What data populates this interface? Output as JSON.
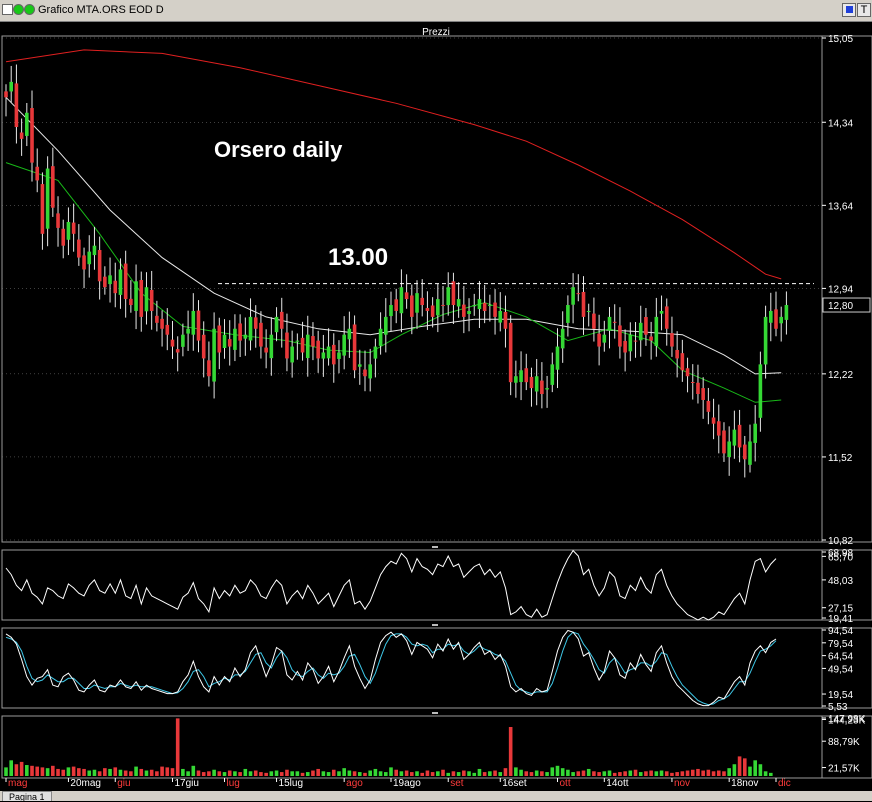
{
  "window": {
    "title": "Grafico MTA.ORS EOD D",
    "t_button": "T"
  },
  "tabs": [
    "Pagina 1"
  ],
  "panel_title": "Prezzi",
  "annotations": {
    "main_title": "Orsero daily",
    "level_label": "13.00",
    "level_value": 12.98
  },
  "price_axis": {
    "ticks": [
      "15,05",
      "14,34",
      "13,64",
      "12,94",
      "12,22",
      "11,52",
      "10,82"
    ],
    "last_price": "12,80"
  },
  "osc1_axis": {
    "ticks": [
      "68,98",
      "48,03",
      "27,15"
    ],
    "extra": [
      "65,70",
      "19,41"
    ]
  },
  "osc2_axis": {
    "ticks": [
      "94,54",
      "64,54",
      "49,54",
      "19,54"
    ],
    "extra": [
      "79,54",
      "5,53"
    ]
  },
  "volume_axis": {
    "ticks": [
      "147,98K",
      "88,79K",
      "21,57K"
    ],
    "extra": [
      "144,23K"
    ]
  },
  "colors": {
    "up": "#35d835",
    "down": "#e8383a",
    "ma_long": "#e02020",
    "ma_mid": "#e8e8e8",
    "ma_short": "#18b818",
    "osc_line": "#ffffff",
    "stoch_k": "#ffffff",
    "stoch_d": "#3ec8e8",
    "grid": "#808080",
    "text": "#ffffff",
    "axis_bg": "#000000",
    "month_label": "#ff3b3b"
  },
  "chart_data": {
    "type": "candlestick",
    "title": "Orsero daily",
    "x_labels": [
      {
        "label": "mag",
        "kind": "month",
        "day": 0
      },
      {
        "label": "20mag",
        "kind": "week",
        "day": 12
      },
      {
        "label": "giu",
        "kind": "month",
        "day": 21
      },
      {
        "label": "17giu",
        "kind": "week",
        "day": 32
      },
      {
        "label": "lug",
        "kind": "month",
        "day": 42
      },
      {
        "label": "15lug",
        "kind": "week",
        "day": 52
      },
      {
        "label": "ago",
        "kind": "month",
        "day": 65
      },
      {
        "label": "19ago",
        "kind": "week",
        "day": 74
      },
      {
        "label": "set",
        "kind": "month",
        "day": 85
      },
      {
        "label": "16set",
        "kind": "week",
        "day": 95
      },
      {
        "label": "ott",
        "kind": "month",
        "day": 106
      },
      {
        "label": "14ott",
        "kind": "week",
        "day": 115
      },
      {
        "label": "nov",
        "kind": "month",
        "day": 128
      },
      {
        "label": "18nov",
        "kind": "week",
        "day": 139
      },
      {
        "label": "dic",
        "kind": "month",
        "day": 148
      }
    ],
    "price_ylim": [
      10.82,
      15.05
    ],
    "osc1_ylim": [
      19.41,
      68.98
    ],
    "osc2_ylim": [
      5.53,
      94.54
    ],
    "volume_ylim": [
      0,
      147.98
    ],
    "close_series": [
      14.55,
      14.68,
      14.3,
      14.2,
      14.42,
      14.0,
      13.85,
      13.4,
      13.95,
      13.62,
      13.45,
      13.3,
      13.5,
      13.4,
      13.2,
      13.1,
      13.25,
      13.3,
      13.0,
      12.95,
      13.05,
      12.9,
      13.1,
      12.85,
      12.8,
      13.0,
      12.7,
      12.95,
      12.75,
      12.65,
      12.6,
      12.55,
      12.45,
      12.4,
      12.55,
      12.6,
      12.75,
      12.5,
      12.35,
      12.2,
      12.6,
      12.4,
      12.55,
      12.45,
      12.6,
      12.5,
      12.55,
      12.7,
      12.6,
      12.45,
      12.4,
      12.55,
      12.7,
      12.6,
      12.35,
      12.45,
      12.5,
      12.4,
      12.55,
      12.45,
      12.35,
      12.4,
      12.45,
      12.3,
      12.4,
      12.55,
      12.6,
      12.25,
      12.3,
      12.2,
      12.3,
      12.45,
      12.6,
      12.7,
      12.8,
      12.75,
      12.95,
      12.85,
      12.7,
      12.9,
      12.8,
      12.75,
      12.7,
      12.85,
      12.8,
      12.95,
      12.8,
      12.85,
      12.7,
      12.75,
      12.8,
      12.85,
      12.75,
      12.8,
      12.7,
      12.75,
      12.6,
      12.15,
      12.2,
      12.25,
      12.15,
      12.1,
      12.2,
      12.05,
      12.1,
      12.3,
      12.45,
      12.6,
      12.8,
      12.95,
      12.9,
      12.7,
      12.75,
      12.6,
      12.45,
      12.55,
      12.7,
      12.65,
      12.45,
      12.4,
      12.55,
      12.5,
      12.65,
      12.55,
      12.5,
      12.7,
      12.75,
      12.6,
      12.45,
      12.35,
      12.25,
      12.2,
      12.15,
      12.05,
      12.0,
      11.9,
      11.8,
      11.7,
      11.55,
      11.65,
      11.75,
      11.6,
      11.5,
      11.65,
      11.8,
      12.3,
      12.7,
      12.75,
      12.6,
      12.7,
      12.8
    ],
    "series": [
      {
        "name": "ma_long",
        "points": [
          [
            0,
            14.85
          ],
          [
            15,
            14.95
          ],
          [
            30,
            14.92
          ],
          [
            45,
            14.8
          ],
          [
            60,
            14.65
          ],
          [
            75,
            14.5
          ],
          [
            90,
            14.32
          ],
          [
            100,
            14.18
          ],
          [
            110,
            13.98
          ],
          [
            120,
            13.76
          ],
          [
            130,
            13.52
          ],
          [
            140,
            13.24
          ],
          [
            146,
            13.06
          ],
          [
            149,
            13.02
          ]
        ]
      },
      {
        "name": "ma_mid",
        "points": [
          [
            0,
            14.55
          ],
          [
            10,
            14.1
          ],
          [
            20,
            13.6
          ],
          [
            30,
            13.2
          ],
          [
            40,
            12.9
          ],
          [
            50,
            12.7
          ],
          [
            60,
            12.6
          ],
          [
            70,
            12.55
          ],
          [
            80,
            12.62
          ],
          [
            90,
            12.68
          ],
          [
            100,
            12.68
          ],
          [
            110,
            12.6
          ],
          [
            120,
            12.58
          ],
          [
            130,
            12.55
          ],
          [
            138,
            12.38
          ],
          [
            144,
            12.22
          ],
          [
            149,
            12.23
          ]
        ]
      },
      {
        "name": "ma_short",
        "points": [
          [
            0,
            14.0
          ],
          [
            10,
            13.85
          ],
          [
            18,
            13.4
          ],
          [
            26,
            12.9
          ],
          [
            34,
            12.62
          ],
          [
            44,
            12.55
          ],
          [
            54,
            12.5
          ],
          [
            62,
            12.42
          ],
          [
            70,
            12.4
          ],
          [
            76,
            12.55
          ],
          [
            84,
            12.72
          ],
          [
            92,
            12.82
          ],
          [
            100,
            12.7
          ],
          [
            108,
            12.5
          ],
          [
            116,
            12.6
          ],
          [
            124,
            12.5
          ],
          [
            130,
            12.25
          ],
          [
            138,
            12.1
          ],
          [
            144,
            11.98
          ],
          [
            149,
            12.0
          ]
        ]
      }
    ],
    "oscillator": [
      57,
      52,
      44,
      40,
      48,
      38,
      35,
      30,
      42,
      40,
      36,
      34,
      45,
      42,
      38,
      36,
      44,
      48,
      40,
      38,
      45,
      38,
      48,
      36,
      34,
      44,
      30,
      42,
      36,
      34,
      32,
      30,
      28,
      26,
      35,
      38,
      46,
      34,
      30,
      24,
      42,
      34,
      40,
      36,
      44,
      38,
      40,
      48,
      44,
      36,
      34,
      42,
      48,
      44,
      30,
      36,
      40,
      34,
      44,
      38,
      30,
      34,
      38,
      28,
      36,
      44,
      48,
      30,
      32,
      26,
      32,
      42,
      52,
      58,
      62,
      60,
      68,
      64,
      54,
      64,
      58,
      56,
      52,
      60,
      58,
      66,
      58,
      60,
      50,
      54,
      58,
      60,
      52,
      56,
      50,
      54,
      42,
      22,
      24,
      28,
      22,
      20,
      26,
      20,
      22,
      34,
      46,
      56,
      64,
      70,
      66,
      52,
      56,
      44,
      36,
      42,
      54,
      50,
      36,
      34,
      44,
      40,
      50,
      42,
      38,
      52,
      56,
      44,
      36,
      30,
      26,
      22,
      20,
      18,
      20,
      18,
      20,
      24,
      22,
      28,
      34,
      38,
      30,
      48,
      62,
      64,
      54,
      60,
      64
    ],
    "stoch_k": [
      90,
      86,
      78,
      60,
      40,
      30,
      38,
      40,
      48,
      30,
      28,
      40,
      44,
      36,
      24,
      22,
      30,
      36,
      24,
      22,
      30,
      28,
      36,
      28,
      26,
      34,
      24,
      30,
      26,
      24,
      22,
      20,
      20,
      22,
      34,
      42,
      58,
      40,
      28,
      22,
      40,
      30,
      40,
      34,
      50,
      40,
      48,
      68,
      76,
      58,
      40,
      54,
      74,
      70,
      42,
      36,
      46,
      36,
      56,
      48,
      32,
      40,
      52,
      34,
      46,
      62,
      76,
      52,
      38,
      26,
      36,
      60,
      80,
      88,
      92,
      86,
      90,
      82,
      66,
      80,
      76,
      72,
      62,
      78,
      70,
      84,
      72,
      80,
      60,
      66,
      74,
      80,
      66,
      70,
      60,
      66,
      52,
      28,
      22,
      26,
      20,
      18,
      26,
      22,
      24,
      46,
      70,
      86,
      94,
      92,
      84,
      64,
      68,
      50,
      36,
      46,
      70,
      62,
      42,
      38,
      56,
      48,
      66,
      54,
      46,
      68,
      76,
      56,
      40,
      30,
      24,
      18,
      12,
      8,
      6,
      6,
      10,
      16,
      14,
      24,
      34,
      40,
      30,
      56,
      70,
      76,
      68,
      80,
      84
    ],
    "stoch_d": [
      86,
      84,
      80,
      70,
      52,
      38,
      34,
      36,
      42,
      38,
      34,
      34,
      38,
      38,
      32,
      26,
      26,
      30,
      28,
      26,
      28,
      28,
      32,
      30,
      28,
      30,
      28,
      28,
      28,
      26,
      24,
      22,
      20,
      21,
      26,
      34,
      46,
      48,
      40,
      28,
      32,
      34,
      38,
      36,
      42,
      42,
      46,
      56,
      66,
      68,
      56,
      50,
      62,
      70,
      62,
      48,
      42,
      40,
      46,
      50,
      42,
      38,
      44,
      42,
      44,
      52,
      64,
      66,
      54,
      40,
      32,
      44,
      62,
      78,
      88,
      90,
      90,
      86,
      78,
      76,
      78,
      76,
      68,
      72,
      72,
      78,
      76,
      78,
      70,
      66,
      70,
      76,
      72,
      70,
      66,
      64,
      58,
      44,
      30,
      24,
      22,
      20,
      22,
      22,
      22,
      32,
      50,
      70,
      86,
      92,
      90,
      78,
      70,
      60,
      48,
      44,
      56,
      62,
      54,
      44,
      48,
      50,
      56,
      56,
      52,
      58,
      68,
      66,
      52,
      40,
      30,
      24,
      18,
      12,
      9,
      7,
      8,
      12,
      14,
      18,
      26,
      34,
      34,
      44,
      58,
      70,
      72,
      76,
      82
    ],
    "volume": [
      22,
      40,
      30,
      36,
      28,
      26,
      24,
      22,
      20,
      26,
      18,
      16,
      22,
      24,
      20,
      18,
      14,
      16,
      12,
      20,
      18,
      22,
      16,
      14,
      12,
      24,
      18,
      14,
      16,
      12,
      24,
      22,
      20,
      147,
      18,
      12,
      26,
      14,
      10,
      12,
      16,
      12,
      10,
      14,
      12,
      10,
      18,
      12,
      14,
      10,
      8,
      12,
      14,
      10,
      16,
      12,
      12,
      8,
      10,
      14,
      18,
      12,
      10,
      16,
      12,
      20,
      14,
      12,
      10,
      8,
      14,
      18,
      12,
      10,
      22,
      16,
      12,
      14,
      10,
      12,
      8,
      14,
      10,
      12,
      16,
      8,
      12,
      10,
      14,
      12,
      8,
      18,
      10,
      12,
      14,
      10,
      20,
      125,
      22,
      16,
      12,
      10,
      14,
      12,
      10,
      22,
      26,
      20,
      16,
      10,
      12,
      14,
      18,
      12,
      10,
      12,
      14,
      8,
      10,
      12,
      14,
      16,
      10,
      12,
      14,
      12,
      14,
      12,
      8,
      10,
      12,
      14,
      16,
      18,
      14,
      16,
      12,
      14,
      12,
      20,
      30,
      50,
      45,
      24,
      40,
      30,
      12,
      8
    ]
  }
}
